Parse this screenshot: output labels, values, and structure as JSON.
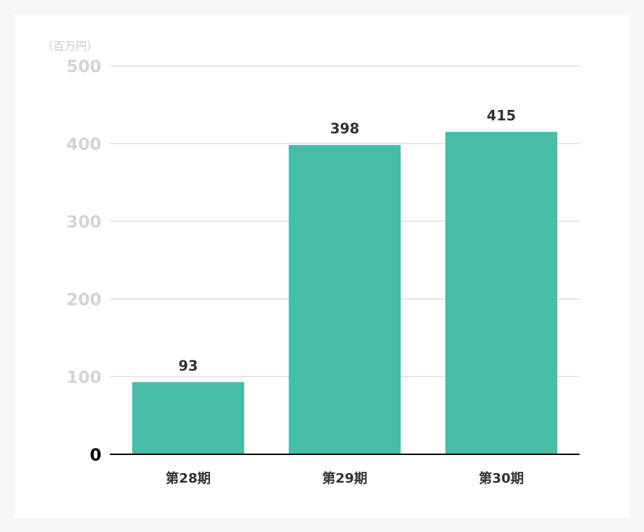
{
  "chart_data": {
    "type": "bar",
    "y_axis_label": "（百万円）",
    "categories": [
      "第28期",
      "第29期",
      "第30期"
    ],
    "values": [
      93,
      398,
      415
    ],
    "color": "#45bda8",
    "ylim": [
      0,
      500
    ],
    "yticks": [
      0,
      100,
      200,
      300,
      400,
      500
    ],
    "grid": true
  }
}
